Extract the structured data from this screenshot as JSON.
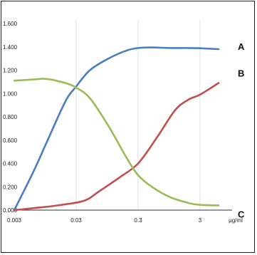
{
  "chart_data": {
    "type": "line",
    "xlabel": "",
    "ylabel": "",
    "x_scale": "log",
    "xlim": [
      0.003,
      8
    ],
    "ylim": [
      0,
      1.6
    ],
    "grid": {
      "vertical": true,
      "horizontal": false
    },
    "y_ticks": [
      "0.000",
      "0.200",
      "0.400",
      "0.600",
      "0.800",
      "1.000",
      "1.200",
      "1.400",
      "1.600"
    ],
    "x_ticks": [
      {
        "value": 0.003,
        "label": "0.003"
      },
      {
        "value": 0.03,
        "label": "0.03"
      },
      {
        "value": 0.3,
        "label": "0.3"
      },
      {
        "value": 3,
        "label": "3"
      }
    ],
    "x_unit_label": "µg/ml",
    "series": [
      {
        "name": "A",
        "color": "#4a7ebf",
        "points": [
          [
            0.003,
            0.0
          ],
          [
            0.006,
            0.32
          ],
          [
            0.01,
            0.58
          ],
          [
            0.02,
            0.93
          ],
          [
            0.03,
            1.06
          ],
          [
            0.05,
            1.2
          ],
          [
            0.1,
            1.3
          ],
          [
            0.2,
            1.37
          ],
          [
            0.3,
            1.39
          ],
          [
            0.5,
            1.395
          ],
          [
            1,
            1.39
          ],
          [
            2,
            1.39
          ],
          [
            3,
            1.388
          ],
          [
            6,
            1.38
          ]
        ]
      },
      {
        "name": "B",
        "color": "#c0504d",
        "points": [
          [
            0.003,
            0.0
          ],
          [
            0.007,
            0.02
          ],
          [
            0.015,
            0.04
          ],
          [
            0.04,
            0.08
          ],
          [
            0.07,
            0.16
          ],
          [
            0.15,
            0.28
          ],
          [
            0.3,
            0.4
          ],
          [
            0.6,
            0.62
          ],
          [
            1.2,
            0.86
          ],
          [
            2,
            0.95
          ],
          [
            3,
            0.99
          ],
          [
            6,
            1.09
          ]
        ]
      },
      {
        "name": "C",
        "color": "#9bbb59",
        "points": [
          [
            0.003,
            1.11
          ],
          [
            0.006,
            1.12
          ],
          [
            0.01,
            1.125
          ],
          [
            0.02,
            1.09
          ],
          [
            0.03,
            1.05
          ],
          [
            0.05,
            0.96
          ],
          [
            0.1,
            0.72
          ],
          [
            0.2,
            0.44
          ],
          [
            0.3,
            0.3
          ],
          [
            0.5,
            0.2
          ],
          [
            1,
            0.11
          ],
          [
            2,
            0.06
          ],
          [
            3,
            0.045
          ],
          [
            6,
            0.04
          ]
        ]
      }
    ]
  }
}
